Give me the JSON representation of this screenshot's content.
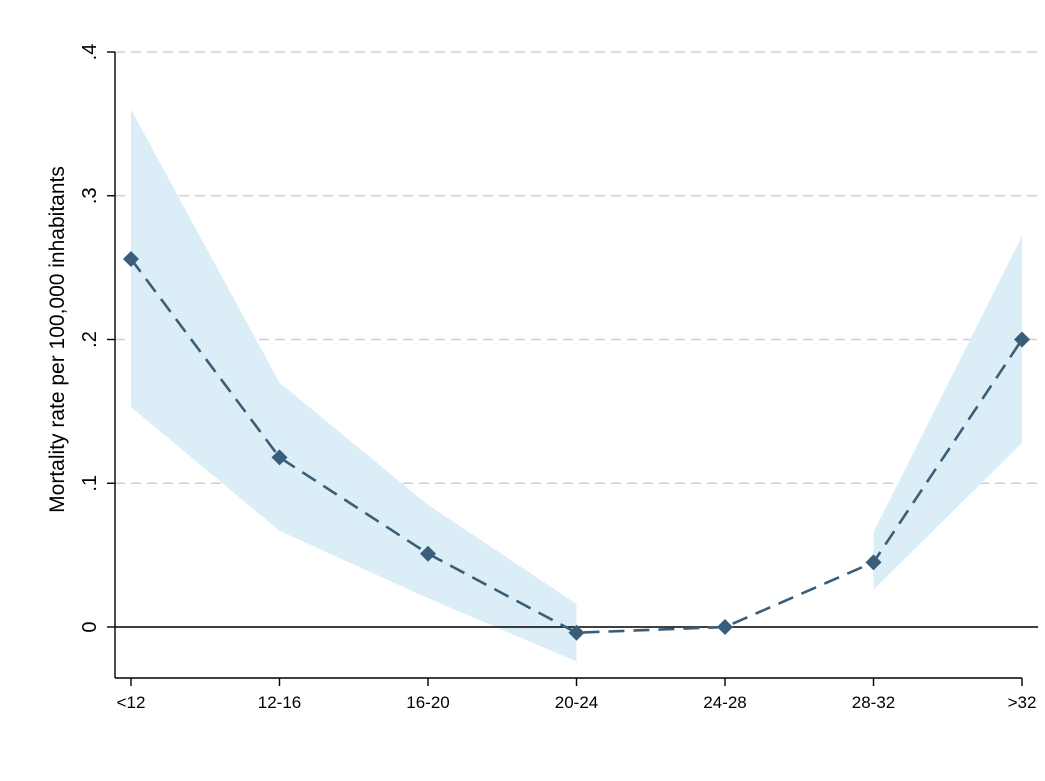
{
  "chart_data": {
    "type": "line",
    "title": "",
    "xlabel": "",
    "ylabel": "Mortality rate per 100,000 inhabitants",
    "categories": [
      "<12",
      "12-16",
      "16-20",
      "20-24",
      "24-28",
      "28-32",
      ">32"
    ],
    "series": [
      {
        "values": [
          0.256,
          0.118,
          0.051,
          -0.004,
          0.0,
          0.045,
          0.2
        ],
        "ci_lower": [
          0.153,
          0.067,
          0.02,
          -0.024,
          null,
          0.026,
          0.128
        ],
        "ci_upper": [
          0.36,
          0.17,
          0.085,
          0.016,
          null,
          0.066,
          0.272
        ]
      }
    ],
    "ylim": [
      -0.035,
      0.41
    ],
    "yticks": [
      0,
      0.1,
      0.2,
      0.3,
      0.4
    ],
    "ytick_labels": [
      "0",
      ".1",
      ".2",
      ".3",
      ".4"
    ],
    "grid": "horizontal dashed",
    "reference_line_y": 0,
    "colors": {
      "line": "#3a5e7a",
      "marker": "#3a5e7a",
      "ci_band": "#dbeef7",
      "grid": "#d0d0d0",
      "axis": "#000000"
    }
  }
}
